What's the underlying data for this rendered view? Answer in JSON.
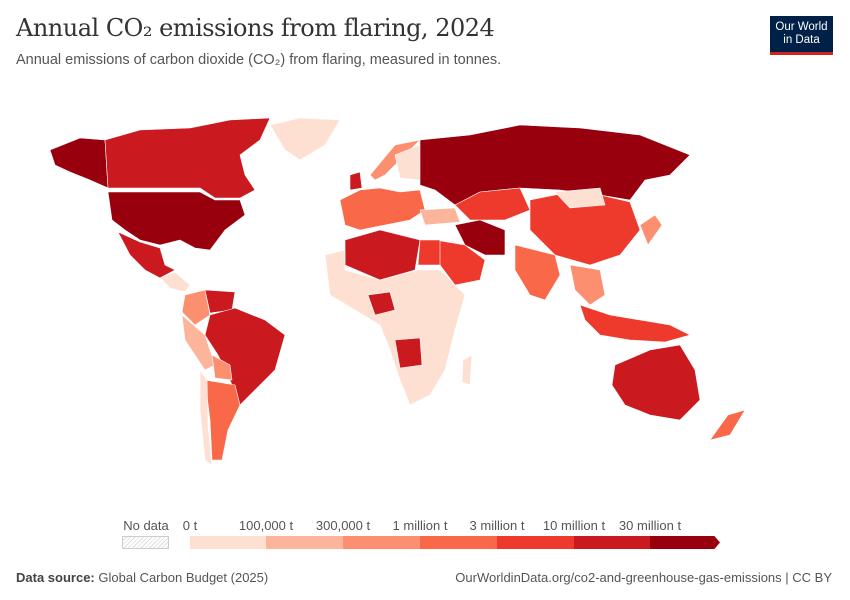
{
  "header": {
    "title": "Annual CO₂ emissions from flaring, 2024",
    "subtitle": "Annual emissions of carbon dioxide (CO₂) from flaring, measured in tonnes.",
    "logo_line1": "Our World",
    "logo_line2": "in Data"
  },
  "legend": {
    "no_data_label": "No data",
    "no_data_color": "#ffffff",
    "thresholds": [
      "0 t",
      "100,000 t",
      "300,000 t",
      "1 million t",
      "3 million t",
      "10 million t",
      "30 million t"
    ],
    "colors": [
      "#fee0d2",
      "#fcb49b",
      "#fc8f6f",
      "#f96848",
      "#ee3a2c",
      "#ca191f",
      "#99000d"
    ]
  },
  "footer": {
    "source_label": "Data source:",
    "source": "Global Carbon Budget (2025)",
    "url": "OurWorldinData.org/co2-and-greenhouse-gas-emissions | CC BY"
  }
}
